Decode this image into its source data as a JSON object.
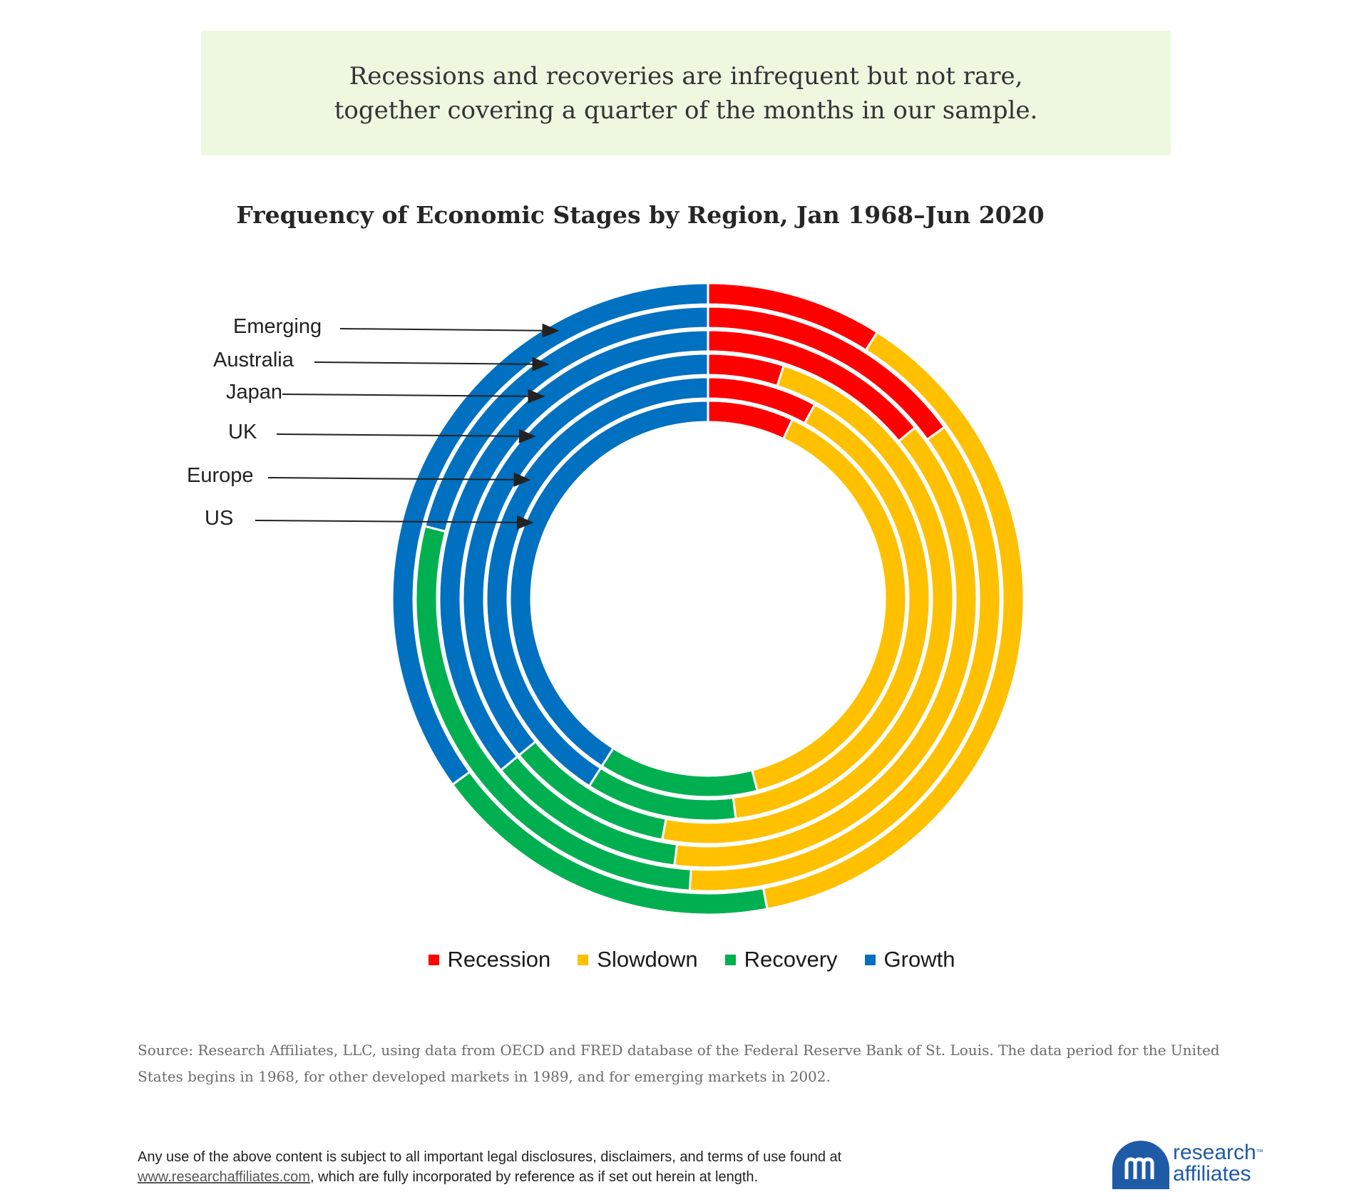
{
  "banner": {
    "line1": "Recessions and recoveries are infrequent but not rare,",
    "line2": "together covering a quarter of the months in our sample."
  },
  "colors": {
    "Recession": "#ff0000",
    "Slowdown": "#ffc000",
    "Recovery": "#00b050",
    "Growth": "#0070c0"
  },
  "chart_data": {
    "type": "nested-donut",
    "title": "Frequency of Economic Stages by Region, Jan 1968–Jun 2020",
    "categories": [
      "Recession",
      "Slowdown",
      "Recovery",
      "Growth"
    ],
    "series": [
      {
        "name": "US",
        "values": [
          7,
          39,
          13,
          41
        ]
      },
      {
        "name": "Europe",
        "values": [
          8,
          40,
          11,
          41
        ]
      },
      {
        "name": "UK",
        "values": [
          5,
          48,
          11,
          36
        ]
      },
      {
        "name": "Japan",
        "values": [
          14,
          38,
          12,
          36
        ]
      },
      {
        "name": "Australia",
        "values": [
          15,
          36,
          28,
          21
        ]
      },
      {
        "name": "Emerging",
        "values": [
          9,
          38,
          18,
          35
        ]
      }
    ]
  },
  "legend": [
    "Recession",
    "Slowdown",
    "Recovery",
    "Growth"
  ],
  "source": "Source: Research Affiliates, LLC, using data from OECD and FRED database of the Federal Reserve Bank of St. Louis. The data period for the United States begins in 1968, for other developed markets in 1989, and for emerging markets in 2002.",
  "disclaimer": {
    "line1": "Any use of the above content is subject to all important legal disclosures, disclaimers, and terms of use found at",
    "link": "www.researchaffiliates.com",
    "line2_rest": ", which are fully incorporated by reference as if set out herein at length."
  },
  "logo": {
    "line1": "research",
    "line2": "affiliates",
    "tm": "™"
  }
}
